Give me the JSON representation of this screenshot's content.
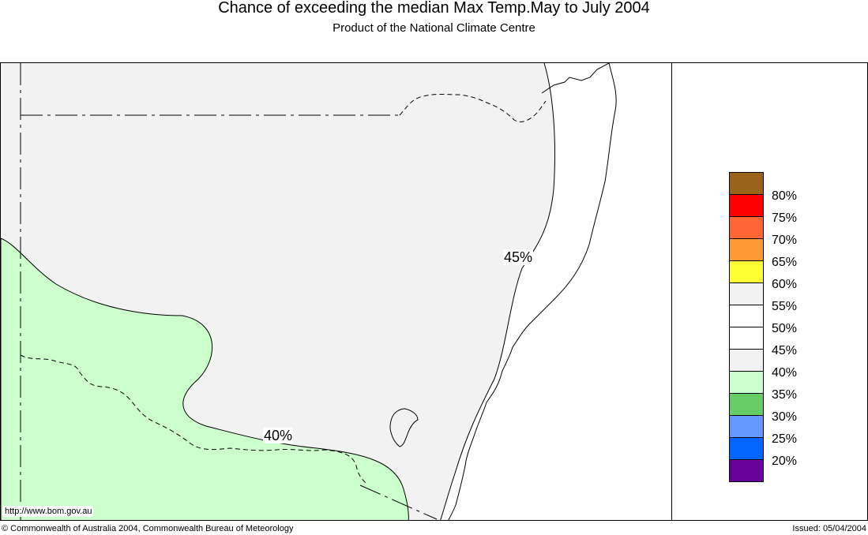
{
  "title": "Chance of exceeding the median Max Temp.May to July 2004",
  "subtitle": "Product of the National Climate Centre",
  "map": {
    "region_labels": [
      {
        "id": "label-45",
        "text": "45%"
      },
      {
        "id": "label-40",
        "text": "40%"
      }
    ],
    "region_colors": {
      "below_45": "#ccffcc",
      "band_45_55": "#f2f2f2",
      "coast_background": "#ffffff"
    },
    "url": "http://www.bom.gov.au"
  },
  "legend": {
    "swatches": [
      {
        "color": "#996419"
      },
      {
        "color": "#ff0000"
      },
      {
        "color": "#ff6633"
      },
      {
        "color": "#ff9933"
      },
      {
        "color": "#ffff33"
      },
      {
        "color": "#f2f2f2"
      },
      {
        "color": "#ffffff"
      },
      {
        "color": "#ffffff"
      },
      {
        "color": "#f2f2f2"
      },
      {
        "color": "#ccffcc"
      },
      {
        "color": "#66cc66"
      },
      {
        "color": "#6699ff"
      },
      {
        "color": "#0066ff"
      },
      {
        "color": "#660099"
      }
    ],
    "labels": [
      "80%",
      "75%",
      "70%",
      "65%",
      "60%",
      "55%",
      "50%",
      "45%",
      "40%",
      "35%",
      "30%",
      "25%",
      "20%"
    ]
  },
  "footer": {
    "copyright": "© Commonwealth of Australia 2004, Commonwealth Bureau of Meteorology",
    "issued": "Issued: 05/04/2004"
  }
}
